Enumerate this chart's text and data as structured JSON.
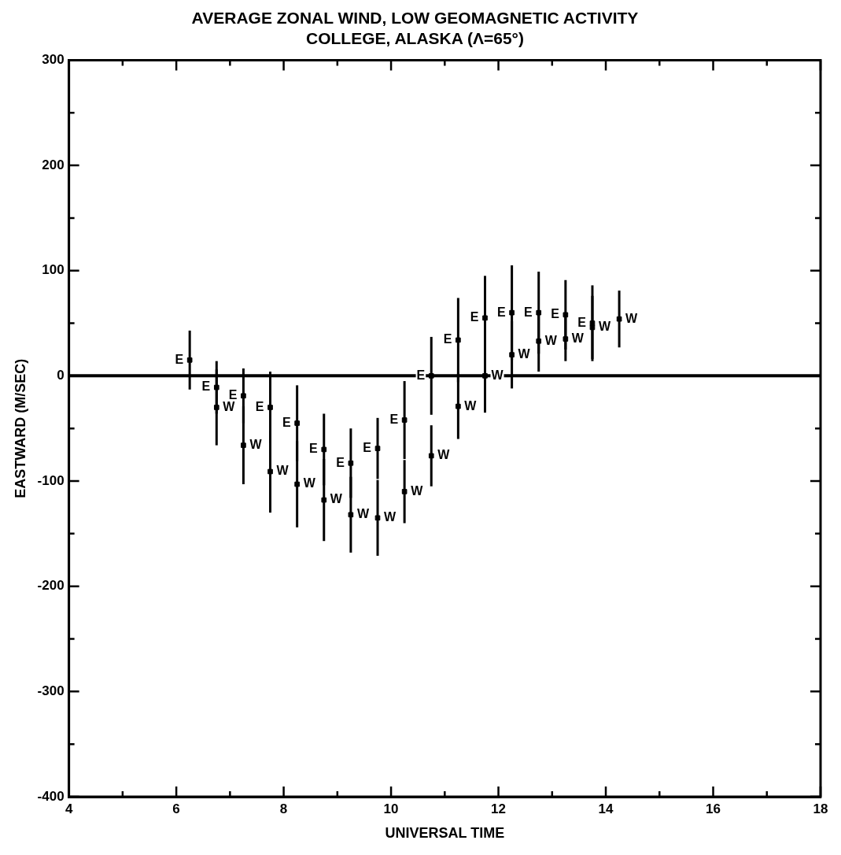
{
  "chart_data": {
    "type": "scatter",
    "title": "AVERAGE ZONAL WIND, LOW GEOMAGNETIC ACTIVITY",
    "subtitle": "COLLEGE, ALASKA (Λ=65°)",
    "xlabel": "UNIVERSAL TIME",
    "ylabel": "EASTWARD (M/SEC)",
    "x": [
      6.25,
      6.75,
      7.25,
      7.75,
      8.25,
      8.75,
      9.25,
      9.75,
      10.25,
      10.75,
      11.25,
      11.75,
      12.25,
      12.75,
      13.25,
      13.75,
      14.25
    ],
    "series": [
      {
        "name": "E",
        "color": "#000000",
        "values": [
          15,
          -11,
          -19,
          -30,
          -45,
          -70,
          -83,
          -69,
          -42,
          0,
          34,
          55,
          60,
          60,
          58,
          50,
          null
        ],
        "errors": [
          28,
          25,
          26,
          34,
          36,
          34,
          33,
          29,
          37,
          37,
          40,
          40,
          45,
          39,
          33,
          36,
          null
        ]
      },
      {
        "name": "W",
        "color": "#000000",
        "values": [
          null,
          -30,
          -66,
          -91,
          -103,
          -118,
          -132,
          -135,
          -110,
          -76,
          -29,
          0,
          20,
          33,
          35,
          46,
          54
        ],
        "errors": [
          null,
          36,
          37,
          39,
          41,
          39,
          36,
          36,
          30,
          29,
          31,
          35,
          32,
          29,
          21,
          30,
          27
        ]
      }
    ],
    "xlim": [
      4,
      18
    ],
    "xticks": [
      4,
      {
        "value": 5,
        "label": null
      },
      6,
      {
        "value": 7,
        "label": null
      },
      8,
      {
        "value": 9,
        "label": null
      },
      10,
      {
        "value": 11,
        "label": null
      },
      12,
      {
        "value": 13,
        "label": null
      },
      14,
      {
        "value": 15,
        "label": null
      },
      16,
      {
        "value": 17,
        "label": null
      },
      18
    ],
    "ylim": [
      -400,
      300
    ],
    "yticks": [
      -400,
      {
        "value": -350,
        "label": null
      },
      -300,
      {
        "value": -250,
        "label": null
      },
      -200,
      {
        "value": -150,
        "label": null
      },
      -100,
      {
        "value": -50,
        "label": null
      },
      0,
      {
        "value": 50,
        "label": null
      },
      100,
      {
        "value": 150,
        "label": null
      },
      200,
      {
        "value": 250,
        "label": null
      },
      300
    ],
    "ref_lines": [
      {
        "axis": "y",
        "value": 0,
        "color": "#000000"
      }
    ],
    "grid": false,
    "legend": false,
    "marker": "square"
  }
}
